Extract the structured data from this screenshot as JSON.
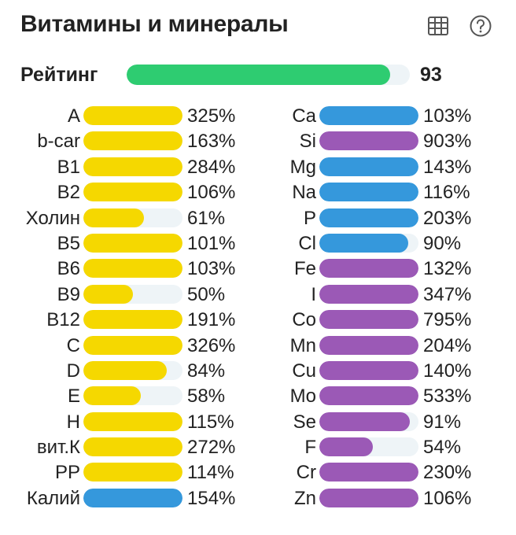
{
  "header": {
    "title": "Витамины и минералы",
    "table_icon": "table-icon",
    "help_icon": "question-circle-icon"
  },
  "colors": {
    "vitamin": "#f5d800",
    "mineral_blue": "#3598dc",
    "mineral_purple": "#9b59b6",
    "rating": "#2ecc71",
    "track": "#eef4f7"
  },
  "rating": {
    "label": "Рейтинг",
    "value": "93",
    "fraction": 0.93
  },
  "left_column": [
    {
      "name": "A",
      "percent": "325%",
      "fill": 1.0,
      "color": "vitamin"
    },
    {
      "name": "b-car",
      "percent": "163%",
      "fill": 1.0,
      "color": "vitamin"
    },
    {
      "name": "B1",
      "percent": "284%",
      "fill": 1.0,
      "color": "vitamin"
    },
    {
      "name": "B2",
      "percent": "106%",
      "fill": 1.0,
      "color": "vitamin"
    },
    {
      "name": "Холин",
      "percent": "61%",
      "fill": 0.61,
      "color": "vitamin"
    },
    {
      "name": "B5",
      "percent": "101%",
      "fill": 1.0,
      "color": "vitamin"
    },
    {
      "name": "B6",
      "percent": "103%",
      "fill": 1.0,
      "color": "vitamin"
    },
    {
      "name": "B9",
      "percent": "50%",
      "fill": 0.5,
      "color": "vitamin"
    },
    {
      "name": "B12",
      "percent": "191%",
      "fill": 1.0,
      "color": "vitamin"
    },
    {
      "name": "C",
      "percent": "326%",
      "fill": 1.0,
      "color": "vitamin"
    },
    {
      "name": "D",
      "percent": "84%",
      "fill": 0.84,
      "color": "vitamin"
    },
    {
      "name": "E",
      "percent": "58%",
      "fill": 0.58,
      "color": "vitamin"
    },
    {
      "name": "H",
      "percent": "115%",
      "fill": 1.0,
      "color": "vitamin"
    },
    {
      "name": "вит.К",
      "percent": "272%",
      "fill": 1.0,
      "color": "vitamin"
    },
    {
      "name": "PP",
      "percent": "114%",
      "fill": 1.0,
      "color": "vitamin"
    },
    {
      "name": "Калий",
      "percent": "154%",
      "fill": 1.0,
      "color": "mineral_blue"
    }
  ],
  "right_column": [
    {
      "name": "Ca",
      "percent": "103%",
      "fill": 1.0,
      "color": "mineral_blue"
    },
    {
      "name": "Si",
      "percent": "903%",
      "fill": 1.0,
      "color": "mineral_purple"
    },
    {
      "name": "Mg",
      "percent": "143%",
      "fill": 1.0,
      "color": "mineral_blue"
    },
    {
      "name": "Na",
      "percent": "116%",
      "fill": 1.0,
      "color": "mineral_blue"
    },
    {
      "name": "P",
      "percent": "203%",
      "fill": 1.0,
      "color": "mineral_blue"
    },
    {
      "name": "Cl",
      "percent": "90%",
      "fill": 0.9,
      "color": "mineral_blue"
    },
    {
      "name": "Fe",
      "percent": "132%",
      "fill": 1.0,
      "color": "mineral_purple"
    },
    {
      "name": "I",
      "percent": "347%",
      "fill": 1.0,
      "color": "mineral_purple"
    },
    {
      "name": "Co",
      "percent": "795%",
      "fill": 1.0,
      "color": "mineral_purple"
    },
    {
      "name": "Mn",
      "percent": "204%",
      "fill": 1.0,
      "color": "mineral_purple"
    },
    {
      "name": "Cu",
      "percent": "140%",
      "fill": 1.0,
      "color": "mineral_purple"
    },
    {
      "name": "Mo",
      "percent": "533%",
      "fill": 1.0,
      "color": "mineral_purple"
    },
    {
      "name": "Se",
      "percent": "91%",
      "fill": 0.91,
      "color": "mineral_purple"
    },
    {
      "name": "F",
      "percent": "54%",
      "fill": 0.54,
      "color": "mineral_purple"
    },
    {
      "name": "Cr",
      "percent": "230%",
      "fill": 1.0,
      "color": "mineral_purple"
    },
    {
      "name": "Zn",
      "percent": "106%",
      "fill": 1.0,
      "color": "mineral_purple"
    }
  ]
}
